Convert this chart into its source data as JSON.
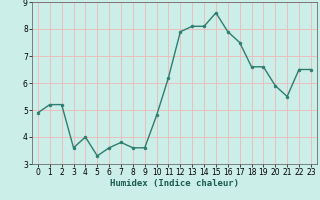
{
  "x": [
    0,
    1,
    2,
    3,
    4,
    5,
    6,
    7,
    8,
    9,
    10,
    11,
    12,
    13,
    14,
    15,
    16,
    17,
    18,
    19,
    20,
    21,
    22,
    23
  ],
  "y": [
    4.9,
    5.2,
    5.2,
    3.6,
    4.0,
    3.3,
    3.6,
    3.8,
    3.6,
    3.6,
    4.8,
    6.2,
    7.9,
    8.1,
    8.1,
    8.6,
    7.9,
    7.5,
    6.6,
    6.6,
    5.9,
    5.5,
    6.5,
    6.5
  ],
  "line_color": "#2e7d6e",
  "marker_color": "#2e7d6e",
  "bg_color": "#cceee8",
  "grid_color": "#f0b8b8",
  "xlabel": "Humidex (Indice chaleur)",
  "ylim": [
    3,
    9
  ],
  "xlim": [
    -0.5,
    23.5
  ],
  "yticks": [
    3,
    4,
    5,
    6,
    7,
    8,
    9
  ],
  "xticks": [
    0,
    1,
    2,
    3,
    4,
    5,
    6,
    7,
    8,
    9,
    10,
    11,
    12,
    13,
    14,
    15,
    16,
    17,
    18,
    19,
    20,
    21,
    22,
    23
  ],
  "tick_fontsize": 5.5,
  "label_fontsize": 6.5,
  "spine_color": "#555555",
  "line_width": 1.0,
  "marker_size": 2.0
}
